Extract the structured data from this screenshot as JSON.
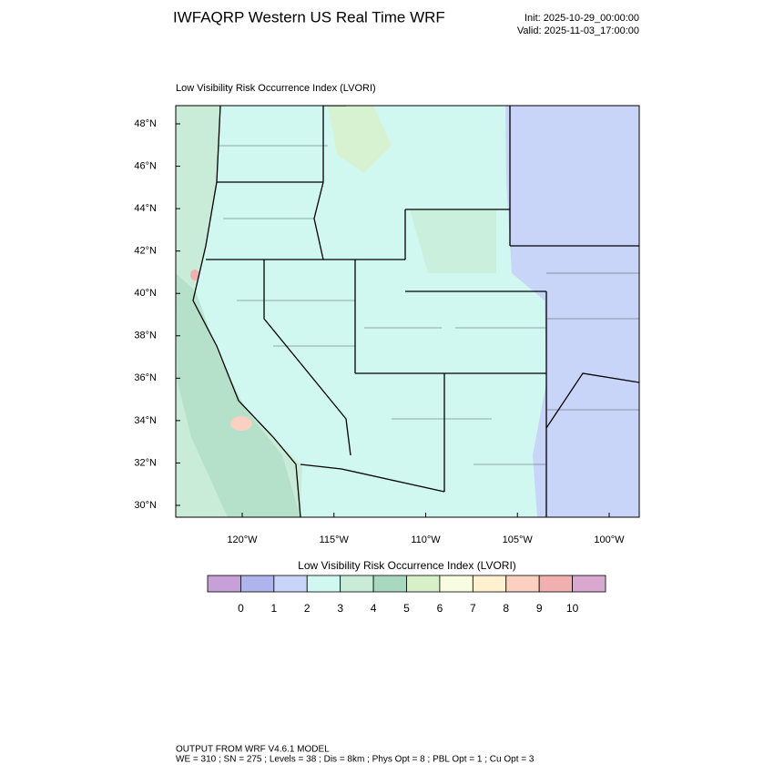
{
  "header": {
    "title": "IWFAQRP Western US Real Time WRF",
    "init": "Init: 2025-10-29_00:00:00",
    "valid": "Valid: 2025-11-03_17:00:00"
  },
  "map": {
    "subtitle": "Low Visibility Risk Occurrence Index   (LVORI)",
    "lat_ticks": [
      {
        "value": 48,
        "label": "48°N"
      },
      {
        "value": 46,
        "label": "46°N"
      },
      {
        "value": 44,
        "label": "44°N"
      },
      {
        "value": 42,
        "label": "42°N"
      },
      {
        "value": 40,
        "label": "40°N"
      },
      {
        "value": 38,
        "label": "38°N"
      },
      {
        "value": 36,
        "label": "36°N"
      },
      {
        "value": 34,
        "label": "34°N"
      },
      {
        "value": 32,
        "label": "32°N"
      },
      {
        "value": 30,
        "label": "30°N"
      }
    ],
    "lon_ticks": [
      {
        "value": -120,
        "label": "120°W"
      },
      {
        "value": -115,
        "label": "115°W"
      },
      {
        "value": -110,
        "label": "110°W"
      },
      {
        "value": -105,
        "label": "105°W"
      },
      {
        "value": -100,
        "label": "100°W"
      }
    ]
  },
  "colorbar": {
    "title": "Low Visibility Risk Occurrence Index  (LVORI)",
    "colors": [
      "#c8a0d8",
      "#b0b4ec",
      "#c8d4f8",
      "#d0f8f0",
      "#c8ecd8",
      "#a8d8c0",
      "#d8f0c8",
      "#f8fce0",
      "#fff0d0",
      "#fcd0c0",
      "#f0b0b0",
      "#d8a8d0"
    ],
    "labels": [
      0,
      1,
      2,
      3,
      4,
      5,
      6,
      7,
      8,
      9,
      10
    ]
  },
  "footer": {
    "line1": "OUTPUT FROM WRF V4.6.1 MODEL",
    "line2": "WE = 310 ; SN = 275 ; Levels = 38 ; Dis = 8km ; Phys Opt = 8 ; PBL Opt = 1 ; Cu Opt = 3"
  }
}
